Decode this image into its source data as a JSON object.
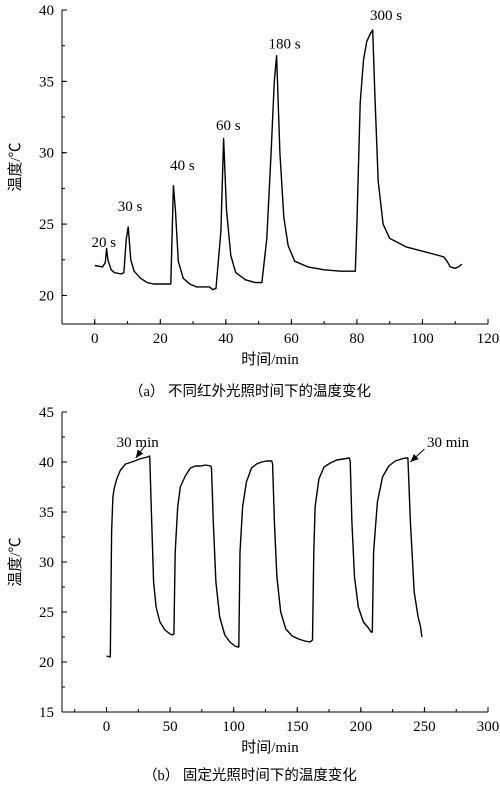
{
  "chart_data": [
    {
      "type": "line",
      "caption": "（a） 不同红外光照时间下的温度变化",
      "xlabel": "时间/min",
      "ylabel": "温度/℃",
      "xlim": [
        -10,
        120
      ],
      "ylim": [
        18,
        40
      ],
      "xticks": [
        "0",
        "20",
        "40",
        "60",
        "80",
        "100",
        "120"
      ],
      "yticks": [
        "20",
        "25",
        "30",
        "35",
        "40"
      ],
      "annotations": [
        {
          "text": "20 s",
          "x": -1,
          "y": 23.4
        },
        {
          "text": "30 s",
          "x": 7,
          "y": 25.9
        },
        {
          "text": "40 s",
          "x": 23,
          "y": 28.8
        },
        {
          "text": "60 s",
          "x": 37,
          "y": 31.6
        },
        {
          "text": "180 s",
          "x": 53,
          "y": 37.3
        },
        {
          "text": "300 s",
          "x": 84,
          "y": 39.3
        }
      ],
      "series": [
        {
          "x": [
            0,
            2.4,
            3.2,
            3.6,
            4,
            5,
            6,
            8,
            8.9,
            9.6,
            10.2,
            11,
            12,
            14,
            16,
            18,
            20,
            22,
            23.2,
            24,
            24.6,
            25.5,
            27,
            29,
            31,
            33,
            35,
            36,
            37,
            38.5,
            39.3,
            40.2,
            41.5,
            43,
            46,
            49,
            51,
            52.5,
            53.8,
            54.8,
            55.5,
            56.5,
            57.7,
            59,
            61,
            65,
            70,
            75,
            79.5,
            80,
            81,
            82,
            83,
            84,
            84.8,
            85.5,
            86.5,
            88,
            90,
            95,
            100,
            105,
            106.5,
            107.5,
            108.5,
            110,
            111,
            112
          ],
          "y": [
            22.1,
            22.0,
            22.3,
            23.3,
            22.5,
            21.8,
            21.6,
            21.5,
            21.6,
            23.9,
            24.8,
            22.5,
            21.7,
            21.2,
            20.9,
            20.8,
            20.8,
            20.8,
            20.8,
            27.7,
            26,
            22.4,
            21.2,
            20.8,
            20.6,
            20.6,
            20.6,
            20.4,
            20.5,
            24.5,
            31.0,
            26,
            22.8,
            21.6,
            21.1,
            20.9,
            20.9,
            24,
            30,
            35,
            36.8,
            30,
            25.5,
            23.5,
            22.4,
            22.0,
            21.8,
            21.7,
            21.7,
            25,
            33.5,
            36.5,
            37.8,
            38.3,
            38.6,
            34,
            28,
            25,
            24,
            23.4,
            23.1,
            22.8,
            22.7,
            22.4,
            22.0,
            21.9,
            22.0,
            22.2
          ]
        }
      ]
    },
    {
      "type": "line",
      "caption": "（b） 固定光照时间下的温度变化",
      "xlabel": "时间/min",
      "ylabel": "温度/℃",
      "xlim": [
        -35,
        300
      ],
      "ylim": [
        15,
        45
      ],
      "xticks": [
        "0",
        "50",
        "100",
        "150",
        "200",
        "250",
        "300"
      ],
      "yticks": [
        "15",
        "20",
        "25",
        "30",
        "35",
        "40",
        "45"
      ],
      "annotations": [
        {
          "text": "30 min",
          "x": 8,
          "y": 41.5
        },
        {
          "text": "30 min",
          "x": 252,
          "y": 41.5
        }
      ],
      "series": [
        {
          "x": [
            0,
            3,
            4,
            5,
            6,
            8,
            11,
            15,
            20,
            26,
            32,
            34,
            35.5,
            37,
            39,
            42,
            46,
            50,
            52,
            53,
            54,
            56,
            58,
            62,
            66,
            70,
            74,
            78,
            82,
            82.6,
            84,
            86,
            89,
            93,
            97,
            101,
            103,
            104,
            105,
            107,
            110,
            114,
            118,
            122,
            126,
            130,
            130.6,
            132,
            134,
            137,
            141,
            146,
            151,
            156,
            160,
            162,
            163,
            164,
            167,
            171,
            176,
            181,
            186,
            191,
            191.6,
            193,
            195,
            198,
            202,
            206,
            208,
            209,
            210,
            213,
            217,
            222,
            227,
            232,
            235,
            237,
            239,
            242,
            245,
            247,
            248
          ],
          "y": [
            20.6,
            20.5,
            33,
            36.5,
            37.3,
            38.3,
            39.2,
            39.8,
            40.0,
            40.3,
            40.5,
            40.6,
            34,
            28,
            25.5,
            24,
            23.2,
            22.8,
            22.7,
            22.8,
            31,
            35.5,
            37.5,
            38.6,
            39.4,
            39.6,
            39.6,
            39.7,
            39.6,
            39.4,
            34,
            28,
            24.5,
            22.7,
            22.0,
            21.6,
            21.5,
            21.5,
            31,
            35.5,
            38,
            39.4,
            39.8,
            40.0,
            40.1,
            40.1,
            39.8,
            34,
            28.5,
            25,
            23.3,
            22.6,
            22.3,
            22.1,
            22.0,
            22.2,
            31,
            35.5,
            38.3,
            39.5,
            39.9,
            40.2,
            40.3,
            40.4,
            40.1,
            34,
            28.5,
            25.5,
            24,
            23.4,
            23.0,
            23.0,
            31,
            36,
            38.5,
            39.6,
            40.1,
            40.3,
            40.4,
            40.4,
            34,
            27,
            24.5,
            23.5,
            22.5
          ]
        }
      ]
    }
  ]
}
